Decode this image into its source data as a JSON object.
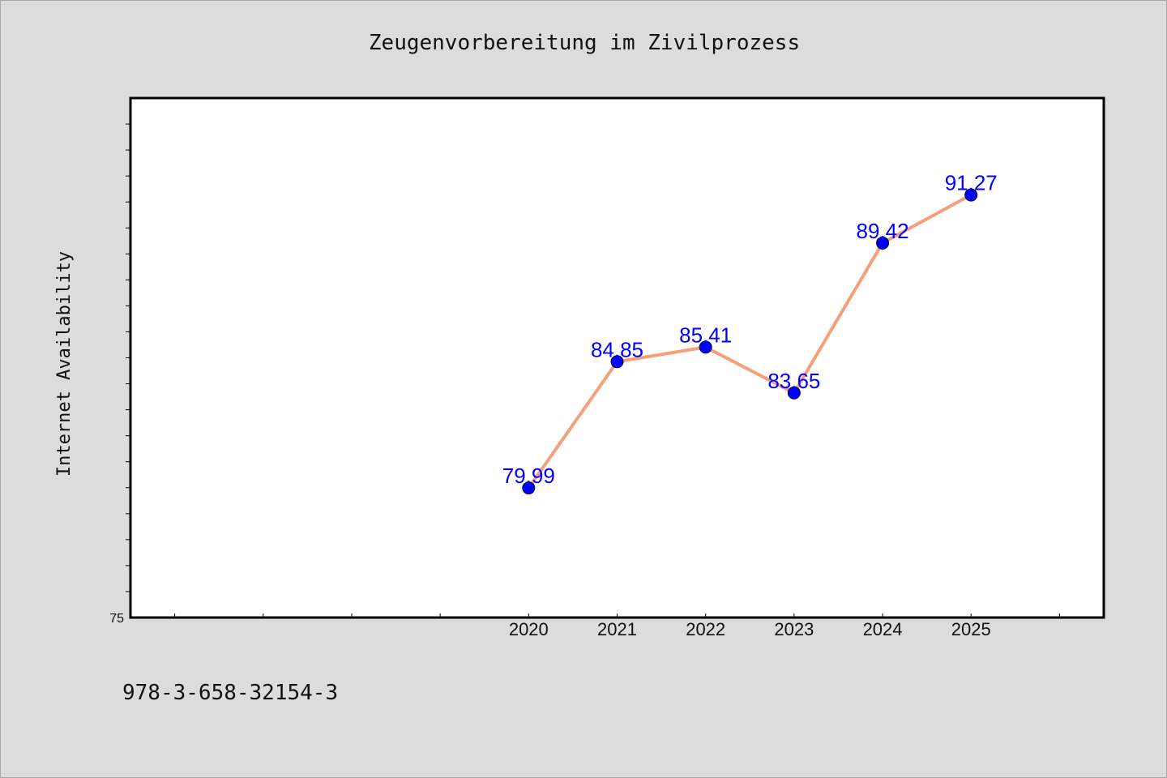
{
  "chart_data": {
    "type": "line",
    "title": "Zeugenvorbereitung im Zivilprozess",
    "xlabel": "",
    "ylabel": "Internet Availability",
    "categories": [
      "2020",
      "2021",
      "2022",
      "2023",
      "2024",
      "2025"
    ],
    "series": [
      {
        "values": [
          79.99,
          84.85,
          85.41,
          83.65,
          89.42,
          91.27
        ]
      }
    ],
    "data_labels": [
      "79.99",
      "84.85",
      "85.41",
      "83.65",
      "89.42",
      "91.27"
    ],
    "ylim": [
      75,
      95
    ],
    "xlim": [
      2015.5,
      2026.5
    ],
    "y_tick_labels": [
      {
        "value": 75,
        "label": "75"
      }
    ],
    "grid": false,
    "line_color": "#f4a07a",
    "marker_color": "#0000ff",
    "label_color": "#0000ff"
  },
  "footer": {
    "isbn": "978-3-658-32154-3"
  }
}
